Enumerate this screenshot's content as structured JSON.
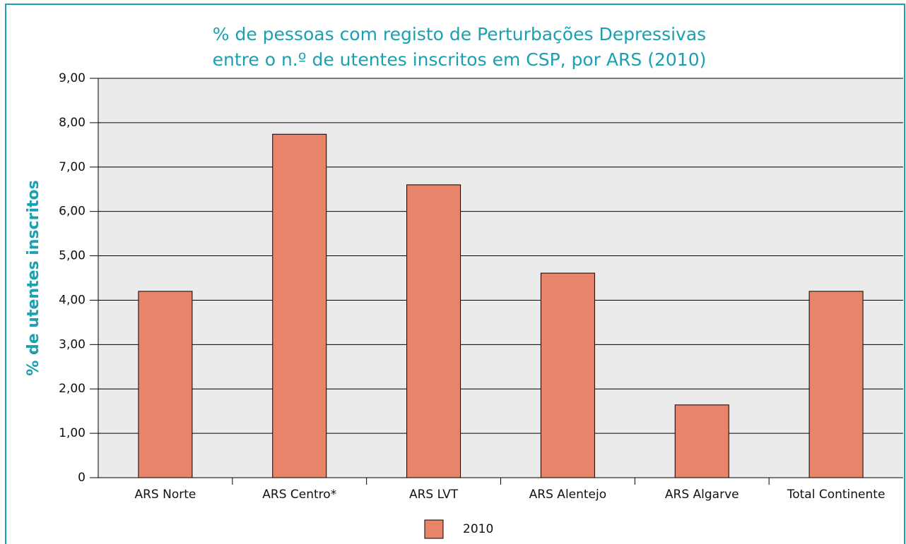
{
  "chart_data": {
    "type": "bar",
    "title": [
      "% de pessoas com registo de Perturbações Depressivas",
      "entre o n.º de utentes inscritos em CSP, por ARS (2010)"
    ],
    "y_label": "% de utentes inscritos",
    "categories": [
      "ARS Norte",
      "ARS Centro*",
      "ARS LVT",
      "ARS Alentejo",
      "ARS Algarve",
      "Total Continente"
    ],
    "series": [
      {
        "name": "2010",
        "color": "#e8846a",
        "values": [
          4.2,
          7.74,
          6.6,
          4.61,
          1.64,
          4.2
        ]
      }
    ],
    "ylim": [
      0,
      9
    ],
    "yticks": [
      0,
      {
        "value": 1,
        "label": "1,00"
      },
      {
        "value": 2,
        "label": "2,00"
      },
      {
        "value": 3,
        "label": "3,00"
      },
      {
        "value": 4,
        "label": "4,00"
      },
      {
        "value": 5,
        "label": "5,00"
      },
      {
        "value": 6,
        "label": "6,00"
      },
      {
        "value": 7,
        "label": "7,00"
      },
      {
        "value": 8,
        "label": "8,00"
      },
      {
        "value": 9,
        "label": "9,00"
      }
    ],
    "grid": true,
    "legend": "bottom"
  }
}
